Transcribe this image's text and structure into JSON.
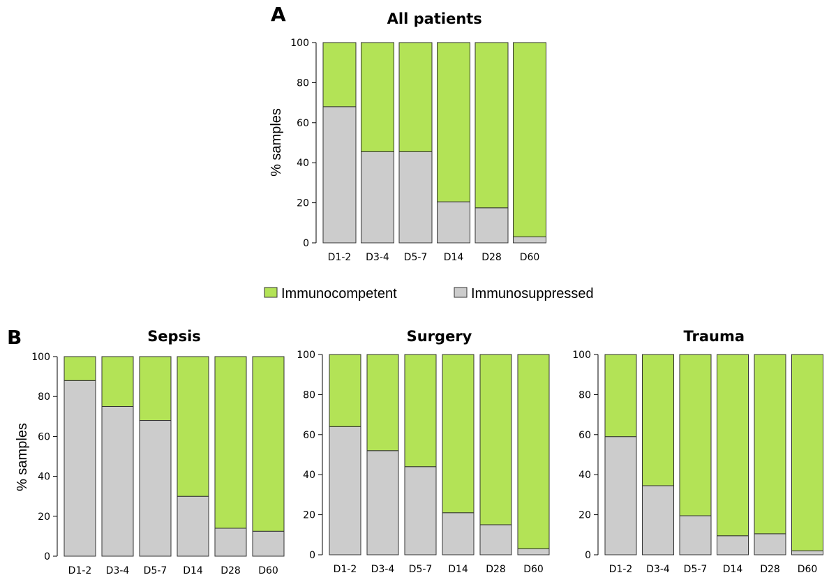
{
  "panels": {
    "a": "A",
    "b": "B"
  },
  "legend": {
    "items": [
      {
        "label": "Immunocompetent",
        "color": "#b3e356"
      },
      {
        "label": "Immunosuppressed",
        "color": "#cccccc"
      }
    ]
  },
  "colors": {
    "immunocompetent": "#b3e356",
    "immunosuppressed": "#cccccc",
    "outline": "#333333"
  },
  "chart_data": [
    {
      "type": "bar",
      "stacked": true,
      "title": "All patients",
      "ylabel": "% samples",
      "xlabel": "",
      "ylim": [
        0,
        100
      ],
      "yticks": [
        0,
        20,
        40,
        60,
        80,
        100
      ],
      "categories": [
        "D1-2",
        "D3-4",
        "D5-7",
        "D14",
        "D28",
        "D60"
      ],
      "series": [
        {
          "name": "Immunosuppressed",
          "values": [
            68,
            45.5,
            45.5,
            20.5,
            17.5,
            3
          ]
        },
        {
          "name": "Immunocompetent",
          "values": [
            32,
            54.5,
            54.5,
            79.5,
            82.5,
            97
          ]
        }
      ]
    },
    {
      "type": "bar",
      "stacked": true,
      "title": "Sepsis",
      "ylabel": "% samples",
      "xlabel": "",
      "ylim": [
        0,
        100
      ],
      "yticks": [
        0,
        20,
        40,
        60,
        80,
        100
      ],
      "categories": [
        "D1-2",
        "D3-4",
        "D5-7",
        "D14",
        "D28",
        "D60"
      ],
      "series": [
        {
          "name": "Immunosuppressed",
          "values": [
            88,
            75,
            68,
            30,
            14,
            12.5
          ]
        },
        {
          "name": "Immunocompetent",
          "values": [
            12,
            25,
            32,
            70,
            86,
            87.5
          ]
        }
      ]
    },
    {
      "type": "bar",
      "stacked": true,
      "title": "Surgery",
      "ylabel": "",
      "xlabel": "",
      "ylim": [
        0,
        100
      ],
      "yticks": [
        0,
        20,
        40,
        60,
        80,
        100
      ],
      "categories": [
        "D1-2",
        "D3-4",
        "D5-7",
        "D14",
        "D28",
        "D60"
      ],
      "series": [
        {
          "name": "Immunosuppressed",
          "values": [
            64,
            52,
            44,
            21,
            15,
            3
          ]
        },
        {
          "name": "Immunocompetent",
          "values": [
            36,
            48,
            56,
            79,
            85,
            97
          ]
        }
      ]
    },
    {
      "type": "bar",
      "stacked": true,
      "title": "Trauma",
      "ylabel": "",
      "xlabel": "",
      "ylim": [
        0,
        100
      ],
      "yticks": [
        0,
        20,
        40,
        60,
        80,
        100
      ],
      "categories": [
        "D1-2",
        "D3-4",
        "D5-7",
        "D14",
        "D28",
        "D60"
      ],
      "series": [
        {
          "name": "Immunosuppressed",
          "values": [
            59,
            34.5,
            19.5,
            9.5,
            10.5,
            2
          ]
        },
        {
          "name": "Immunocompetent",
          "values": [
            41,
            65.5,
            80.5,
            90.5,
            89.5,
            98
          ]
        }
      ]
    }
  ]
}
